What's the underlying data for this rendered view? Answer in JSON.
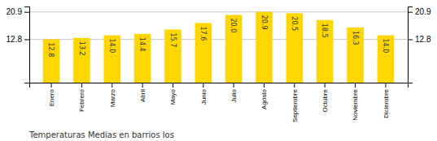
{
  "chart_data": {
    "type": "bar",
    "title": "Temperaturas Medias en barrios los",
    "categories": [
      "Enero",
      "Febrero",
      "Marzo",
      "Abril",
      "Mayo",
      "Junio",
      "Julio",
      "Agosto",
      "Septiembre",
      "Octubre",
      "Noviembre",
      "Diciembre"
    ],
    "values": [
      12.8,
      13.2,
      14.0,
      14.4,
      15.7,
      17.6,
      20.0,
      20.9,
      20.5,
      18.5,
      16.3,
      14.0
    ],
    "value_labels": [
      "12.8",
      "13.2",
      "14.0",
      "14.4",
      "15.7",
      "17.6",
      "20.0",
      "20.9",
      "20.5",
      "18.5",
      "16.3",
      "14.0"
    ],
    "data_labels": true,
    "color": "#FFD700",
    "ylim": [
      0,
      22.5
    ],
    "yticks": [
      12.8,
      20.9
    ],
    "grid": true
  }
}
